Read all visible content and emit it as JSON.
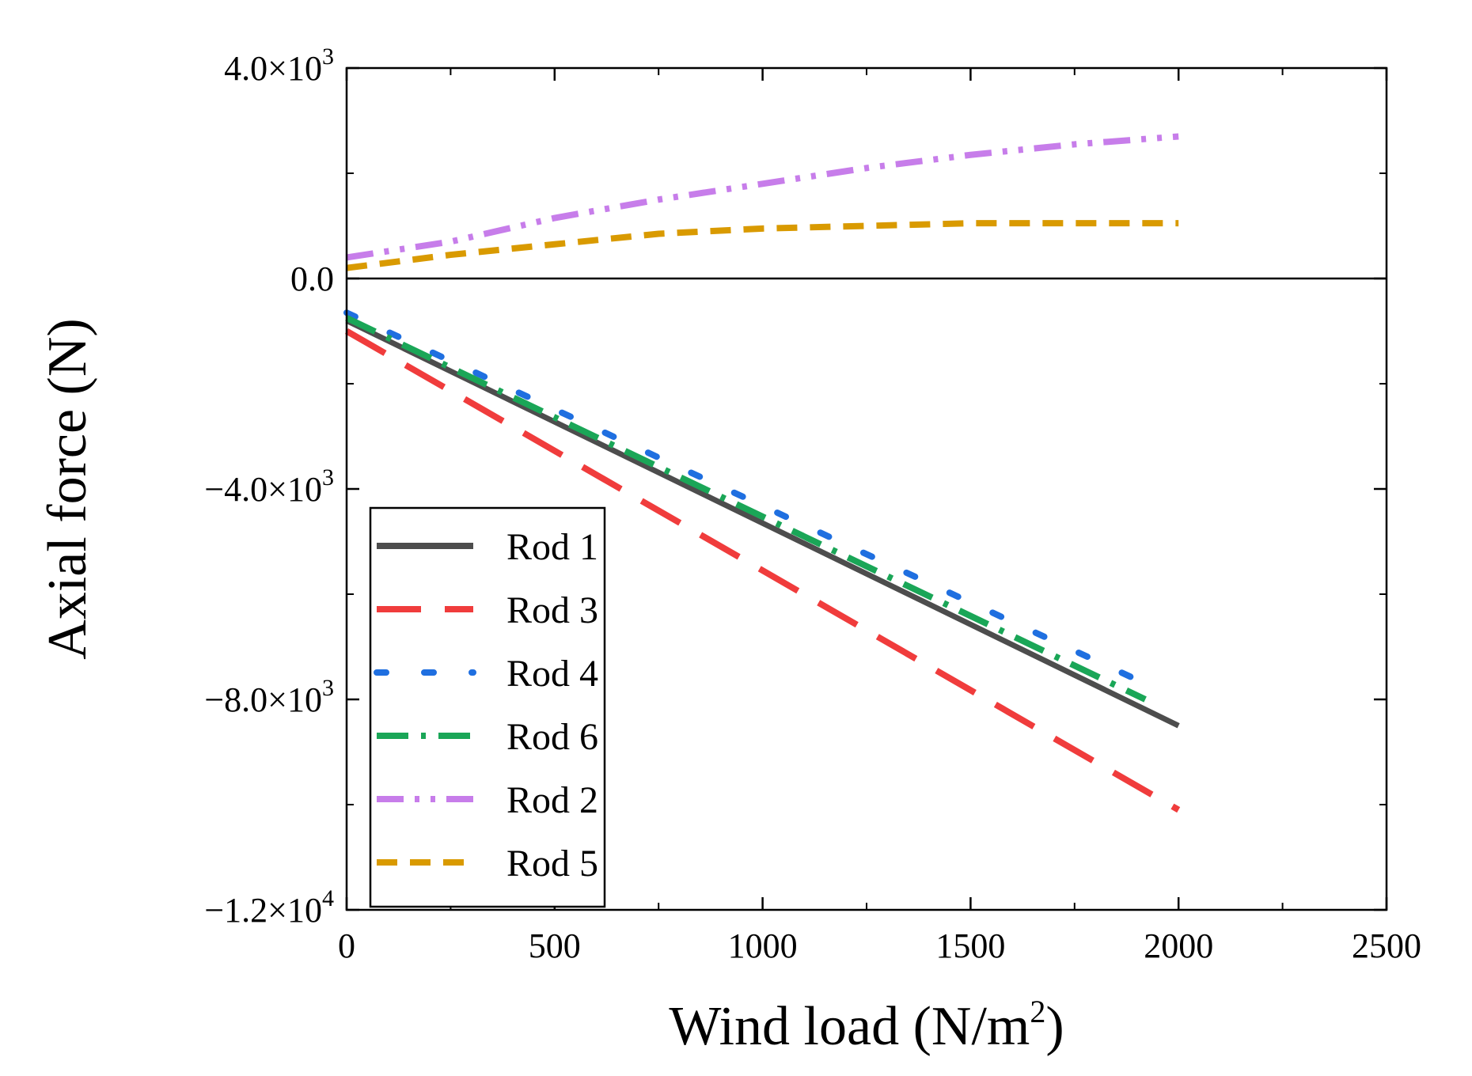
{
  "chart_data": {
    "type": "line",
    "xlabel": "Wind load (N/m",
    "xlabel_sup": "2",
    "xlabel_end": ")",
    "ylabel": "Axial force (N)",
    "xlim": [
      0,
      2500
    ],
    "ylim": [
      -12000,
      4000
    ],
    "grid": false,
    "legend_position": "bottom-left",
    "x_ticks": [
      {
        "value": 0,
        "label": "0"
      },
      {
        "value": 500,
        "label": "500"
      },
      {
        "value": 1000,
        "label": "1000"
      },
      {
        "value": 1500,
        "label": "1500"
      },
      {
        "value": 2000,
        "label": "2000"
      },
      {
        "value": 2500,
        "label": "2500"
      }
    ],
    "y_ticks": [
      {
        "value": 4000,
        "mantissa": "4.0×10",
        "exp": "3"
      },
      {
        "value": 0,
        "mantissa": "0.0",
        "exp": ""
      },
      {
        "value": -4000,
        "mantissa": "−4.0×10",
        "exp": "3"
      },
      {
        "value": -8000,
        "mantissa": "−8.0×10",
        "exp": "3"
      },
      {
        "value": -12000,
        "mantissa": "−1.2×10",
        "exp": "4"
      }
    ],
    "zero_line": 0,
    "series": [
      {
        "name": "Rod 1",
        "color": "#4d4d4d",
        "dash": "solid",
        "x": [
          0,
          2000
        ],
        "y": [
          -800,
          -8500
        ]
      },
      {
        "name": "Rod 3",
        "color": "#f03c3c",
        "dash": "long-dash",
        "x": [
          0,
          2000
        ],
        "y": [
          -1000,
          -10100
        ]
      },
      {
        "name": "Rod 4",
        "color": "#1f6fe0",
        "dash": "dot",
        "x": [
          0,
          1920
        ],
        "y": [
          -650,
          -7700
        ]
      },
      {
        "name": "Rod 6",
        "color": "#1aa657",
        "dash": "dash-dot",
        "x": [
          0,
          1920
        ],
        "y": [
          -750,
          -8000
        ]
      },
      {
        "name": "Rod 2",
        "color": "#c77dea",
        "dash": "dash-dot-dot",
        "x": [
          0,
          250,
          500,
          750,
          1000,
          1250,
          1500,
          1750,
          2000
        ],
        "y": [
          400,
          700,
          1150,
          1500,
          1800,
          2100,
          2350,
          2550,
          2700
        ]
      },
      {
        "name": "Rod 5",
        "color": "#d99a00",
        "dash": "short-dash",
        "x": [
          0,
          250,
          500,
          750,
          1000,
          1250,
          1500,
          1750,
          2000
        ],
        "y": [
          200,
          450,
          650,
          850,
          950,
          1000,
          1050,
          1050,
          1050
        ]
      }
    ]
  }
}
